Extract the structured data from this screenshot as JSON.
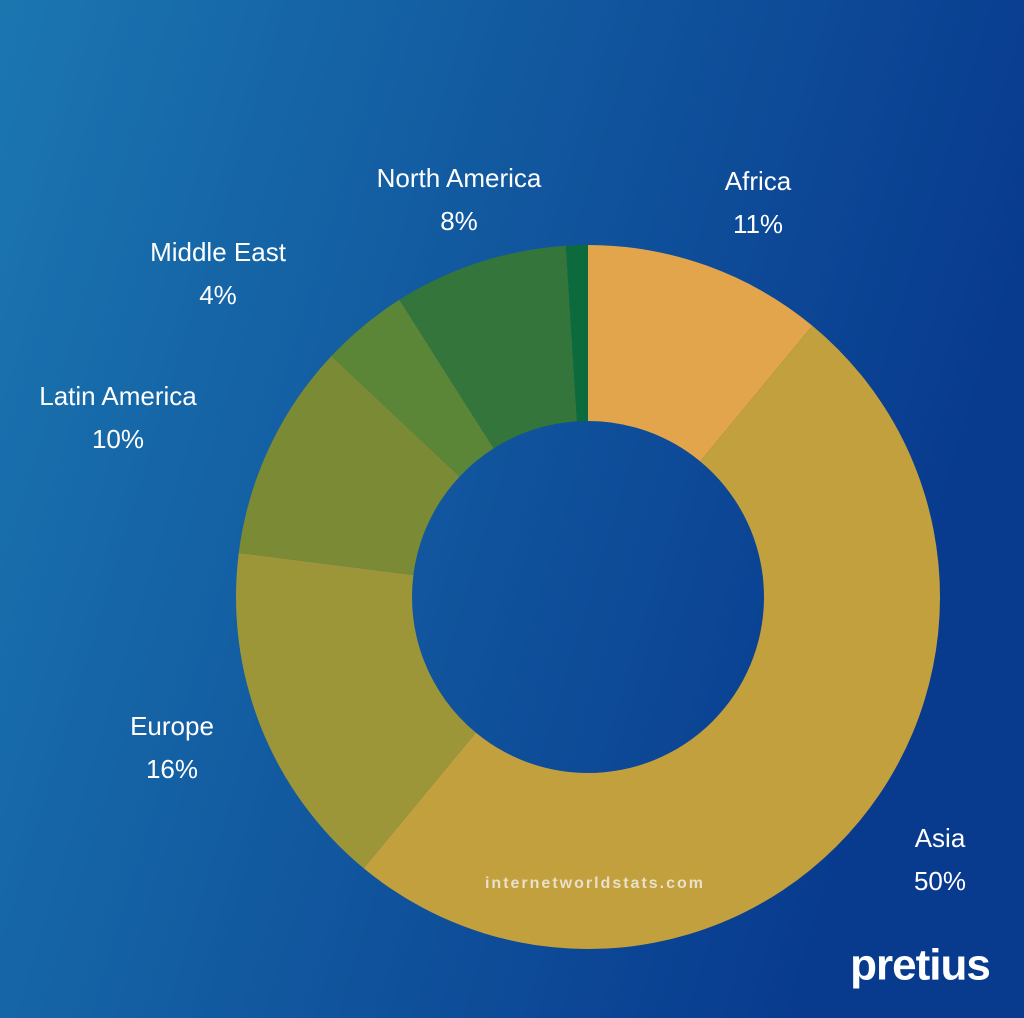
{
  "chart_data": {
    "type": "donut",
    "categories": [
      "Africa",
      "Asia",
      "Europe",
      "Latin America",
      "Middle East",
      "North America",
      null
    ],
    "values": [
      11,
      50,
      16,
      10,
      4,
      8,
      1
    ],
    "value_labels": [
      "11%",
      "50%",
      "16%",
      "10%",
      "4%",
      "8%",
      null
    ],
    "colors": [
      "#e3a54b",
      "#c3a03e",
      "#9d9638",
      "#7a8a35",
      "#5b8637",
      "#33753b",
      "#0d6a3c"
    ],
    "source": "internetworldstats.com",
    "logo": "pretius"
  }
}
